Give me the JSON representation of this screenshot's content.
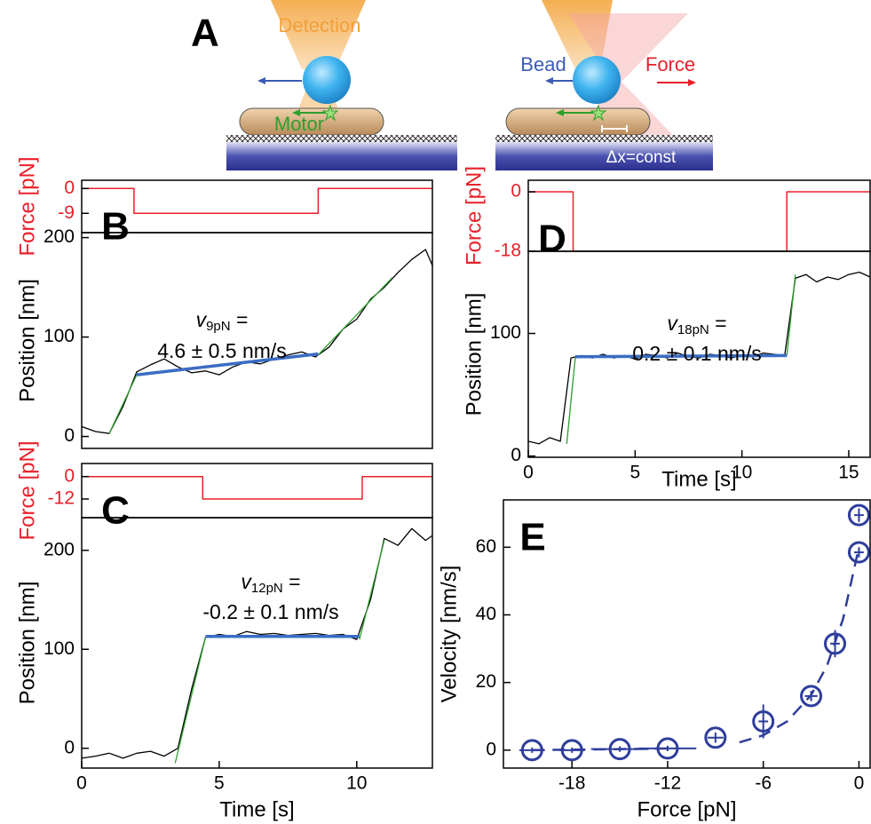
{
  "panel_a": {
    "label": "A",
    "detection": "Detection",
    "motor": "Motor",
    "bead": "Bead",
    "force": "Force",
    "distance": "Δx=const"
  },
  "chart_data": [
    {
      "type": "line",
      "ylabel": "Force [pN]",
      "color": "#e8202a",
      "xlim": [
        0,
        12.75
      ],
      "ylim": [
        -16,
        3
      ],
      "yticks": [
        0,
        -9
      ],
      "series": [
        {
          "color": "#e8202a",
          "line_width": 1.5,
          "x": [
            0,
            1.9,
            1.9,
            8.6,
            8.6,
            12.75
          ],
          "values": [
            0,
            0,
            -9,
            -9,
            0,
            0
          ]
        }
      ]
    },
    {
      "type": "line",
      "label": "B",
      "ylabel": "Position [nm]",
      "xlim": [
        0,
        12.75
      ],
      "ylim": [
        -12,
        205
      ],
      "yticks": [
        0,
        100,
        200
      ],
      "annotation": {
        "symbol": "v",
        "subscript": "9pN",
        "equals": " =",
        "value": "4.6 ± 0.5 nm/s"
      },
      "series": [
        {
          "color": "#000000",
          "line_width": 1.3,
          "x": [
            0,
            0.5,
            1,
            1.5,
            2,
            2.5,
            3,
            3.5,
            4,
            4.5,
            5,
            5.5,
            6,
            6.5,
            7,
            7.5,
            8,
            8.5,
            9,
            9.5,
            10,
            10.5,
            11,
            11.5,
            12,
            12.5,
            12.75
          ],
          "values": [
            10,
            5,
            3,
            30,
            65,
            72,
            78,
            70,
            64,
            66,
            62,
            70,
            75,
            73,
            78,
            82,
            85,
            80,
            90,
            108,
            118,
            138,
            150,
            165,
            178,
            188,
            172
          ]
        },
        {
          "color": "#2ca02c",
          "line_width": 1.3,
          "x": [
            1,
            2,
            null,
            8.6,
            11.3
          ],
          "values": [
            3,
            62,
            null,
            82,
            160
          ]
        },
        {
          "color": "#3b6cc4",
          "line_width": 3.5,
          "x": [
            2,
            8.6
          ],
          "values": [
            62,
            83
          ]
        }
      ]
    },
    {
      "type": "line",
      "ylabel": "Force [pN]",
      "color": "#e8202a",
      "xlim": [
        0,
        12.75
      ],
      "ylim": [
        -22,
        7
      ],
      "yticks": [
        0,
        -12
      ],
      "series": [
        {
          "color": "#e8202a",
          "line_width": 1.5,
          "x": [
            0,
            4.4,
            4.4,
            10.2,
            10.2,
            12.75
          ],
          "values": [
            0,
            0,
            -12,
            -12,
            0,
            0
          ]
        }
      ]
    },
    {
      "type": "line",
      "label": "C",
      "ylabel": "Position [nm]",
      "xlabel": "Time [s]",
      "xlim": [
        0,
        12.75
      ],
      "ylim": [
        -20,
        233
      ],
      "xticks": [
        0,
        5,
        10
      ],
      "yticks": [
        0,
        100,
        200
      ],
      "annotation": {
        "symbol": "v",
        "subscript": "12pN",
        "equals": " =",
        "value": "-0.2 ± 0.1 nm/s"
      },
      "series": [
        {
          "color": "#000000",
          "line_width": 1.3,
          "x": [
            0,
            0.5,
            1,
            1.5,
            2,
            2.5,
            3,
            3.5,
            4,
            4.5,
            5,
            5.5,
            6,
            6.5,
            7,
            7.5,
            8,
            8.5,
            9,
            9.5,
            10,
            10.5,
            11,
            11.5,
            12,
            12.5,
            12.75
          ],
          "values": [
            -10,
            -8,
            -5,
            -10,
            -5,
            -3,
            -8,
            0,
            60,
            112,
            115,
            113,
            118,
            115,
            116,
            114,
            115,
            116,
            114,
            115,
            110,
            150,
            212,
            205,
            222,
            210,
            215
          ]
        },
        {
          "color": "#2ca02c",
          "line_width": 1.3,
          "x": [
            3.4,
            4.5,
            null,
            10.1,
            11
          ],
          "values": [
            -15,
            112,
            null,
            110,
            210
          ]
        },
        {
          "color": "#3b6cc4",
          "line_width": 3.5,
          "x": [
            4.5,
            10.1
          ],
          "values": [
            113,
            113
          ]
        }
      ]
    },
    {
      "type": "line",
      "ylabel": "Force [pN]",
      "color": "#e8202a",
      "xlim": [
        0,
        16
      ],
      "ylim": [
        -18,
        3.5
      ],
      "yticks": [
        0,
        -18
      ],
      "series": [
        {
          "color": "#e8202a",
          "line_width": 1.5,
          "x": [
            0,
            2.1,
            2.1,
            12.1,
            12.1,
            16
          ],
          "values": [
            0,
            0,
            -18,
            -18,
            0,
            0
          ]
        }
      ]
    },
    {
      "type": "line",
      "label": "D",
      "ylabel": "Position [nm]",
      "xlabel": "Time [s]",
      "xlim": [
        0,
        16
      ],
      "ylim": [
        -1,
        167
      ],
      "xticks": [
        0,
        5,
        10,
        15
      ],
      "yticks": [
        0,
        100
      ],
      "annotation": {
        "symbol": "v",
        "subscript": "18pN",
        "equals": " =",
        "value": "0.2 ± 0.1 nm/s"
      },
      "series": [
        {
          "color": "#000000",
          "line_width": 1.3,
          "x": [
            0,
            0.5,
            1,
            1.5,
            2,
            2.5,
            3,
            3.5,
            4,
            4.5,
            5,
            5.5,
            6,
            6.5,
            7,
            7.5,
            8,
            8.5,
            9,
            9.5,
            10,
            10.5,
            11,
            11.5,
            12,
            12.5,
            13,
            13.5,
            14,
            14.5,
            15,
            15.5,
            16
          ],
          "values": [
            12,
            10,
            15,
            12,
            80,
            82,
            80,
            83,
            80,
            82,
            79,
            83,
            82,
            80,
            84,
            81,
            80,
            83,
            82,
            80,
            82,
            81,
            84,
            83,
            82,
            145,
            148,
            142,
            146,
            144,
            148,
            150,
            146
          ]
        },
        {
          "color": "#2ca02c",
          "line_width": 1.3,
          "x": [
            1.8,
            2.2,
            null,
            12.1,
            12.5
          ],
          "values": [
            10,
            80,
            null,
            82,
            148
          ]
        },
        {
          "color": "#3b6cc4",
          "line_width": 3.5,
          "x": [
            2.2,
            12.1
          ],
          "values": [
            81,
            82
          ]
        }
      ]
    },
    {
      "type": "scatter",
      "label": "E",
      "ylabel": "Velocity [nm/s]",
      "xlabel": "Force [pN]",
      "xlim": [
        -22.3,
        0.7
      ],
      "ylim": [
        -5.3,
        74
      ],
      "xticks": [
        -18,
        -12,
        -6,
        0
      ],
      "yticks": [
        0,
        20,
        40,
        60
      ],
      "series": [
        {
          "type": "scatter",
          "color": "#2e3d9c",
          "x": [
            -20.5,
            -18,
            -15,
            -12,
            -9,
            -6,
            -3,
            -1.5,
            0,
            0
          ],
          "values": [
            0,
            0,
            0.3,
            0.5,
            3.7,
            8.5,
            16,
            31.5,
            58.5,
            69.5
          ],
          "errors": [
            0.8,
            0.8,
            0.8,
            0.8,
            1.5,
            5,
            1.5,
            4,
            1.5,
            2
          ],
          "x_errors": [
            0.8,
            0.8,
            1.8,
            1.8,
            0.5,
            0.3,
            0.4,
            0.3,
            0.3,
            0.3
          ]
        },
        {
          "type": "line",
          "color": "#2e3d9c",
          "line_width": 2.5,
          "dashed": true,
          "x": [
            -20.5,
            -11.5,
            null,
            -7.5,
            -6,
            -4.5,
            -3,
            -2,
            -1,
            0
          ],
          "values": [
            0,
            0.5,
            null,
            2.3,
            4.4,
            8.5,
            16.3,
            25,
            38.8,
            60
          ]
        }
      ]
    }
  ]
}
